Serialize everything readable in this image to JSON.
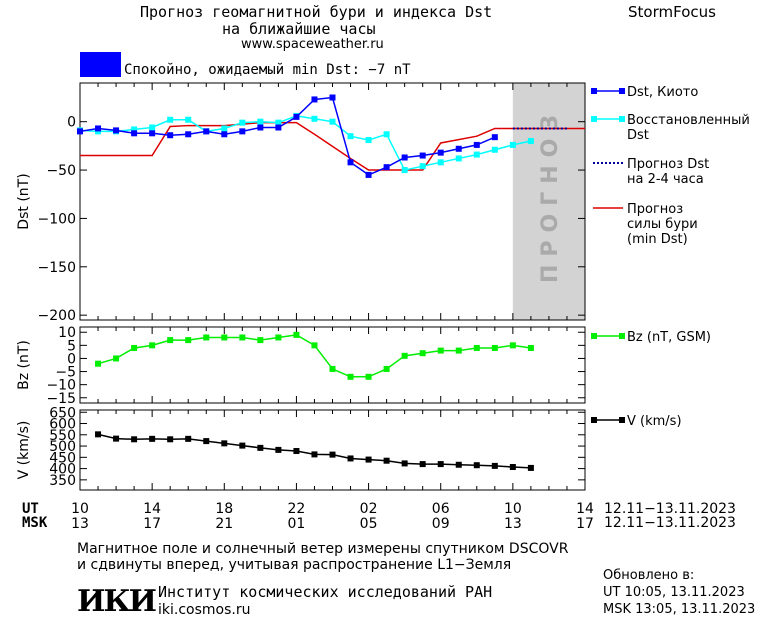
{
  "header": {
    "title_line1": "Прогноз геомагнитной бури и индекса Dst",
    "title_line2": "на ближайшие часы",
    "url": "www.spaceweather.ru",
    "brand": "StormFocus",
    "status_text": "Спокойно, ожидаемый min Dst: −7 nT",
    "status_color": "#0000ff"
  },
  "footer": {
    "line1": "Магнитное поле и солнечный ветер измерены спутником DSCOVR",
    "line2": "и сдвинуты вперед, учитывая распространение L1−Земля",
    "logo": "ИКИ",
    "institute": "Институт космических исследований РАН",
    "site": "iki.cosmos.ru",
    "updated_label": "Обновлено в:",
    "updated_ut": "UT   10:05, 13.11.2023",
    "updated_msk": "MSK 13:05, 13.11.2023"
  },
  "time_axis": {
    "ut_label": "UT",
    "msk_label": "MSK",
    "ut_ticks": [
      "10",
      "14",
      "18",
      "22",
      "02",
      "06",
      "10",
      "14"
    ],
    "msk_ticks": [
      "13",
      "17",
      "21",
      "01",
      "05",
      "09",
      "13",
      "17"
    ],
    "ut_range": "12.11−13.11.2023",
    "msk_range": "12.11−13.11.2023"
  },
  "chart_data": [
    {
      "type": "line",
      "panel": "dst",
      "ylabel": "Dst (nT)",
      "xlim": [
        0,
        28
      ],
      "ylim": [
        -205,
        40
      ],
      "yticks": [
        0,
        -50,
        -100,
        -150,
        -200
      ],
      "forecast_region": {
        "x": [
          24,
          28
        ],
        "label": "ПРОГНОЗ",
        "color": "#d3d3d3"
      },
      "series": [
        {
          "name": "Dst, Киото",
          "color": "#0000ff",
          "marker": "square",
          "x": [
            0,
            1,
            2,
            3,
            4,
            5,
            6,
            7,
            8,
            9,
            10,
            11,
            12,
            13,
            14,
            15,
            16,
            17,
            18,
            19,
            20,
            21,
            22,
            23
          ],
          "y": [
            -10,
            -7,
            -9,
            -12,
            -12,
            -14,
            -13,
            -10,
            -13,
            -10,
            -6,
            -6,
            5,
            23,
            25,
            -42,
            -55,
            -47,
            -37,
            -35,
            -32,
            -28,
            -24,
            -16
          ]
        },
        {
          "name": "Восстановленный Dst",
          "color": "#00ffff",
          "marker": "square",
          "x": [
            0,
            1,
            2,
            3,
            4,
            5,
            6,
            7,
            8,
            9,
            10,
            11,
            12,
            13,
            14,
            15,
            16,
            17,
            18,
            19,
            20,
            21,
            22,
            23,
            24,
            25
          ],
          "y": [
            -9,
            -10,
            -10,
            -8,
            -6,
            2,
            2,
            -10,
            -7,
            -1,
            0,
            -1,
            6,
            3,
            0,
            -15,
            -19,
            -13,
            -50,
            -46,
            -42,
            -38,
            -34,
            -29,
            -24,
            -20
          ]
        },
        {
          "name": "Прогноз Dst на 2-4 часа",
          "color": "#000099",
          "dash": true,
          "x": [
            24,
            25,
            26,
            27
          ],
          "y": [
            -7,
            -7,
            -7,
            -7
          ]
        },
        {
          "name": "Прогноз силы бури (min Dst)",
          "color": "#dd0000",
          "x": [
            0,
            4,
            5,
            6,
            8,
            10,
            12,
            13,
            15,
            16,
            19,
            20,
            22,
            23,
            24,
            28
          ],
          "y": [
            -35,
            -35,
            -5,
            -4,
            -4,
            -1,
            -1,
            -13,
            -38,
            -50,
            -50,
            -22,
            -15,
            -7,
            -7,
            -7
          ]
        }
      ],
      "legend": [
        "Dst, Киото",
        "Восстановленный Dst",
        "Прогноз Dst на 2-4 часа",
        "Прогноз силы бури (min Dst)"
      ],
      "legend_lines": [
        [
          "Dst, Киото"
        ],
        [
          "Восстановленный",
          "Dst"
        ],
        [
          "Прогноз Dst",
          "на 2-4 часа"
        ],
        [
          "Прогноз",
          "силы бури",
          "(min Dst)"
        ]
      ]
    },
    {
      "type": "line",
      "panel": "bz",
      "ylabel": "Bz (nT)",
      "xlim": [
        0,
        28
      ],
      "ylim": [
        -17,
        12
      ],
      "yticks": [
        10,
        5,
        0,
        -5,
        -10,
        -15
      ],
      "series": [
        {
          "name": "Bz (nT, GSM)",
          "color": "#00ee00",
          "marker": "square",
          "x": [
            1,
            2,
            3,
            4,
            5,
            6,
            7,
            8,
            9,
            10,
            11,
            12,
            13,
            14,
            15,
            16,
            17,
            18,
            19,
            20,
            21,
            22,
            23,
            24,
            25
          ],
          "y": [
            -2,
            0,
            4,
            5,
            7,
            7,
            8,
            8,
            8,
            7,
            8,
            9,
            5,
            -4,
            -7,
            -7,
            -4,
            1,
            2,
            3,
            3,
            4,
            4,
            5,
            4
          ]
        }
      ],
      "legend": [
        "Bz (nT, GSM)"
      ]
    },
    {
      "type": "line",
      "panel": "v",
      "ylabel": "V (km/s)",
      "xlim": [
        0,
        28
      ],
      "ylim": [
        305,
        660
      ],
      "yticks": [
        650,
        600,
        550,
        500,
        450,
        400,
        350
      ],
      "series": [
        {
          "name": "V (km/s)",
          "color": "#000000",
          "marker": "square",
          "x": [
            1,
            2,
            3,
            4,
            5,
            6,
            7,
            8,
            9,
            10,
            11,
            12,
            13,
            14,
            15,
            16,
            17,
            18,
            19,
            20,
            21,
            22,
            23,
            24,
            25
          ],
          "y": [
            552,
            533,
            530,
            532,
            530,
            532,
            522,
            512,
            502,
            492,
            483,
            478,
            463,
            462,
            445,
            440,
            435,
            423,
            420,
            420,
            417,
            415,
            412,
            407,
            403
          ]
        }
      ],
      "legend": [
        "V (km/s)"
      ]
    }
  ]
}
